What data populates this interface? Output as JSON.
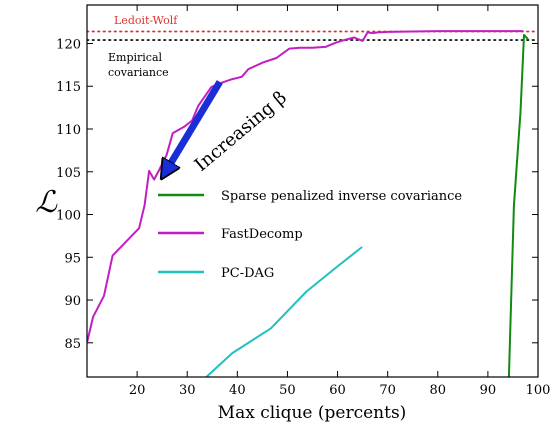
{
  "chart_data": {
    "type": "line",
    "title": "",
    "xlabel": "Max clique (percents)",
    "ylabel": "ℒ",
    "xlim": [
      10,
      100
    ],
    "ylim": [
      81,
      124.5
    ],
    "xticks": [
      20,
      30,
      40,
      50,
      60,
      70,
      80,
      90,
      100
    ],
    "yticks": [
      85,
      90,
      95,
      100,
      105,
      110,
      115,
      120
    ],
    "grid": false,
    "legend": {
      "placement": "center-right",
      "entries": [
        "Sparse penalized inverse covariance",
        "FastDecomp",
        "PC-DAG"
      ]
    },
    "series": [
      {
        "name": "Sparse penalized inverse covariance",
        "color": "#138a13",
        "x": [
          94.2,
          95.2,
          96.5,
          97.2,
          98.0
        ],
        "y": [
          81,
          101,
          112,
          121,
          120.5
        ]
      },
      {
        "name": "FastDecomp",
        "color": "#c21ec2",
        "x": [
          10,
          11.2,
          13.4,
          15.1,
          20.4,
          21.5,
          22.4,
          23.4,
          24.3,
          25.9,
          27.1,
          29.5,
          31.0,
          32.2,
          34.8,
          36.8,
          38.8,
          40.9,
          42.2,
          45.2,
          47.8,
          50.4,
          52.5,
          55.0,
          57.6,
          59.7,
          61.3,
          63.3,
          65.0,
          66.0,
          67.0,
          68.0,
          70.0,
          75.0,
          80.0,
          85.0,
          90.0,
          95.0,
          97.0
        ],
        "y": [
          85,
          88,
          90.5,
          95.2,
          98.4,
          101.1,
          105.1,
          104.1,
          105.1,
          107.0,
          109.5,
          110.3,
          111.0,
          112.7,
          114.9,
          115.4,
          115.8,
          116.1,
          117.0,
          117.8,
          118.3,
          119.4,
          119.5,
          119.5,
          119.6,
          120.1,
          120.4,
          120.7,
          120.3,
          121.3,
          121.2,
          121.3,
          121.35,
          121.4,
          121.45,
          121.45,
          121.45,
          121.45,
          121.45
        ]
      },
      {
        "name": "PC-DAG",
        "color": "#1fc1c1",
        "x": [
          33.8,
          39.0,
          46.7,
          53.8,
          59.7,
          64.9
        ],
        "y": [
          81,
          83.8,
          86.7,
          91.0,
          93.8,
          96.2
        ]
      }
    ],
    "reference_lines": [
      {
        "label": "Ledoit-Wolf",
        "y": 121.4,
        "color": "#e03030"
      },
      {
        "label": "Empirical covariance",
        "label_lines": [
          "Empirical",
          "covariance"
        ],
        "y": 120.4,
        "color": "#202020"
      }
    ],
    "annotation": {
      "text": "Increasing β",
      "arrow_from": [
        36.5,
        115.5
      ],
      "arrow_to": [
        26.0,
        105.3
      ],
      "arrow_color": "#1a2ed8"
    }
  }
}
